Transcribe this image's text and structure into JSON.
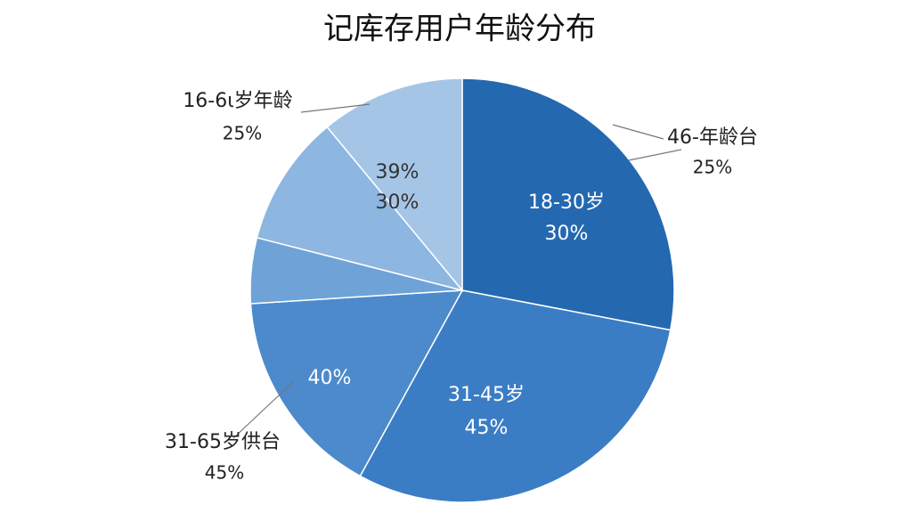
{
  "chart_data": {
    "type": "pie",
    "title": "记库存用户年龄分布",
    "values": [
      28,
      30,
      16,
      5,
      10,
      11
    ],
    "colors": [
      "#2468b0",
      "#3b7dc4",
      "#4c8acb",
      "#6fa3d8",
      "#8db6e0",
      "#a5c5e7"
    ],
    "annotations": [
      "18-30岁",
      "30%",
      "31-45岁",
      "45%",
      "40%",
      "39%",
      "30%",
      "16-6ι岁年龄",
      "25%",
      "46-年龄台",
      "25%",
      "31-65岁供台",
      "45%"
    ]
  }
}
